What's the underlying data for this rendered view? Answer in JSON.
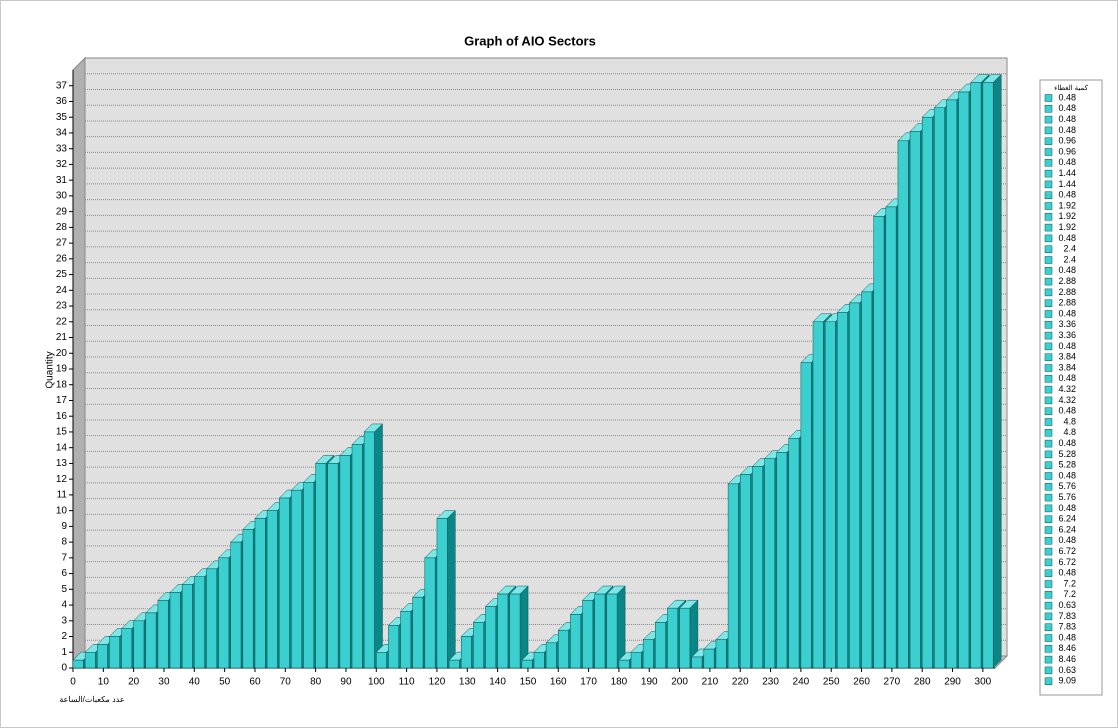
{
  "chart_data": {
    "type": "bar",
    "title": "Graph of AIO Sectors",
    "y_label": "Quantity",
    "x_label": "عدد مكعبات/الساعة",
    "color": "#3ccfd0",
    "x": [
      0,
      4,
      8,
      12,
      16,
      20,
      24,
      28,
      32,
      36,
      40,
      44,
      48,
      52,
      56,
      60,
      64,
      68,
      72,
      76,
      80,
      84,
      88,
      92,
      96,
      100,
      104,
      108,
      112,
      116,
      120,
      124,
      128,
      132,
      136,
      140,
      144,
      148,
      152,
      156,
      160,
      164,
      168,
      172,
      176,
      180,
      184,
      188,
      192,
      196,
      200,
      204,
      208,
      212,
      216,
      220,
      224,
      228,
      232,
      236,
      240,
      244,
      248,
      252,
      256,
      260,
      264,
      268,
      272,
      276,
      280,
      284,
      288,
      292,
      296,
      300
    ],
    "values": [
      0.5,
      1,
      1.5,
      2,
      2.5,
      3,
      3.5,
      4.3,
      4.8,
      5.3,
      5.8,
      6.3,
      7,
      8,
      8.8,
      9.5,
      10,
      10.8,
      11.3,
      11.8,
      13,
      13,
      13.5,
      14.2,
      15,
      1,
      2.7,
      3.6,
      4.5,
      7,
      9.5,
      0.5,
      2,
      2.9,
      3.9,
      4.7,
      4.7,
      0.5,
      1,
      1.6,
      2.4,
      3.4,
      4.3,
      4.7,
      4.7,
      0.5,
      1,
      1.8,
      2.9,
      3.8,
      3.8,
      0.7,
      1.2,
      1.8,
      11.7,
      12.3,
      12.8,
      13.3,
      13.7,
      14.6,
      19.4,
      22,
      22,
      22.6,
      23.2,
      23.9,
      28.7,
      29.3,
      33.5,
      34.1,
      35,
      35.6,
      36.1,
      36.6,
      37.2,
      37.2
    ],
    "xlim": [
      0,
      304
    ],
    "xticks": [
      0,
      10,
      20,
      30,
      40,
      50,
      60,
      70,
      80,
      90,
      100,
      110,
      120,
      130,
      140,
      150,
      160,
      170,
      180,
      190,
      200,
      210,
      220,
      230,
      240,
      250,
      260,
      270,
      280,
      290,
      300
    ],
    "ylim": [
      0,
      38
    ],
    "yticks": [
      0,
      1,
      2,
      3,
      4,
      5,
      6,
      7,
      8,
      9,
      10,
      11,
      12,
      13,
      14,
      15,
      16,
      17,
      18,
      19,
      20,
      21,
      22,
      23,
      24,
      25,
      26,
      27,
      28,
      29,
      30,
      31,
      32,
      33,
      34,
      35,
      36,
      37
    ],
    "grid": true,
    "legend": {
      "title": "كمية الغطاء",
      "entries": [
        "0.48",
        "0.48",
        "0.48",
        "0.48",
        "0.96",
        "0.96",
        "0.48",
        "1.44",
        "1.44",
        "0.48",
        "1.92",
        "1.92",
        "1.92",
        "0.48",
        "2.4",
        "2.4",
        "0.48",
        "2.88",
        "2.88",
        "2.88",
        "0.48",
        "3.36",
        "3.36",
        "0.48",
        "3.84",
        "3.84",
        "0.48",
        "4.32",
        "4.32",
        "0.48",
        "4.8",
        "4.8",
        "0.48",
        "5.28",
        "5.28",
        "0.48",
        "5.76",
        "5.76",
        "0.48",
        "6.24",
        "6.24",
        "0.48",
        "6.72",
        "6.72",
        "0.48",
        "7.2",
        "7.2",
        "0.63",
        "7.83",
        "7.83",
        "0.48",
        "8.46",
        "8.46",
        "0.63",
        "9.09"
      ]
    }
  }
}
